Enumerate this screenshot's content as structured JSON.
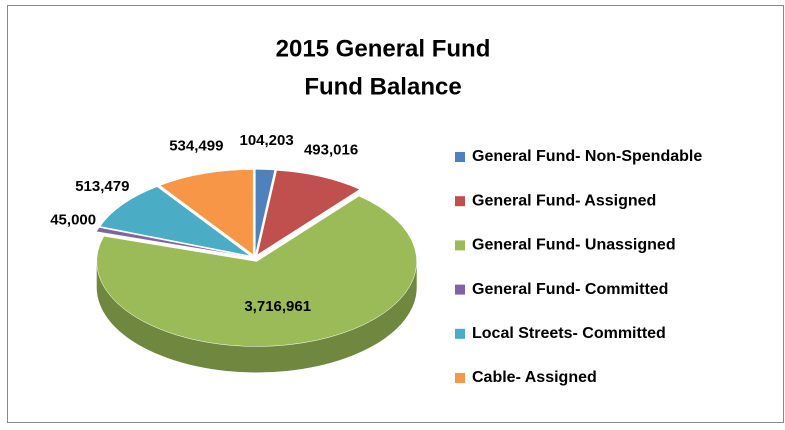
{
  "chart_data": {
    "type": "pie",
    "title": [
      "2015 General Fund",
      "Fund Balance"
    ],
    "categories": [
      "General Fund- Non-Spendable",
      "General Fund- Assigned",
      "General Fund- Unassigned",
      "General Fund- Committed",
      "Local Streets- Committed",
      "Cable- Assigned"
    ],
    "values": [
      104203,
      493016,
      3716961,
      45000,
      513479,
      534499
    ],
    "value_labels": [
      "104,203",
      "493,016",
      "3,716,961",
      "45,000",
      "513,479",
      "534,499"
    ],
    "colors": [
      "#4f81bd",
      "#c0504d",
      "#9bbb59",
      "#8064a2",
      "#4bacc6",
      "#f79646"
    ],
    "legend": "right"
  }
}
